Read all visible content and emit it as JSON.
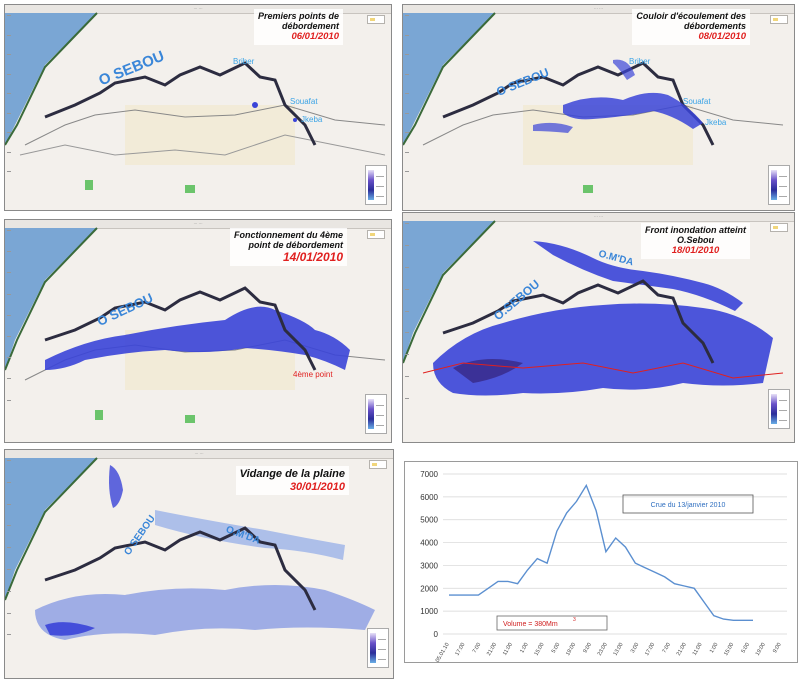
{
  "panels": [
    {
      "title_line1": "Premiers points de",
      "title_line2": "débordement",
      "date": "06/01/2010",
      "river_labels": [
        "O SEBOU"
      ],
      "places": [
        "Briber",
        "Souafat",
        "Jkeba"
      ],
      "colors": {
        "flood": "#3a44d8",
        "river": "#2c2c40",
        "sea": "#7aa6d4"
      }
    },
    {
      "title_line1": "Couloir d'écoulement des",
      "title_line2": "débordements",
      "date": "08/01/2010",
      "river_labels": [
        "O SEBOU"
      ],
      "places": [
        "Briber",
        "Souafat",
        "Jkeba"
      ]
    },
    {
      "title_line1": "Fonctionnement du 4ème",
      "title_line2": "point de débordement",
      "date": "14/01/2010",
      "river_labels": [
        "O SEBOU"
      ],
      "places": [
        "4ème point"
      ]
    },
    {
      "title_line1": "Front inondation atteint",
      "title_line2": "O.Sebou",
      "date": "18/01/2010",
      "river_labels": [
        "O.SEBOU",
        "O.M'DA"
      ],
      "places": []
    },
    {
      "title_line1": "Vidange de la plaine",
      "title_line2": "",
      "date": "30/01/2010",
      "river_labels": [
        "O SEBOU",
        "O.M'DA"
      ],
      "places": []
    }
  ],
  "chart_data": {
    "type": "line",
    "title": "",
    "annotation_box": "Crue du 13/janvier 2010",
    "volume_label": "Volume = 380Mm",
    "volume_superscript": "3",
    "ylim": [
      0,
      7000
    ],
    "yticks": [
      "0",
      "1000",
      "2000",
      "3000",
      "4000",
      "5000",
      "6000",
      "7000"
    ],
    "xtick_labels": [
      "05.01.10",
      "17:00",
      "7:00",
      "21:00",
      "11:00",
      "1:00",
      "15:00",
      "5:00",
      "19:00",
      "9:00",
      "23:00",
      "13:00",
      "3:00",
      "17:00",
      "7:00",
      "21:00",
      "11:00",
      "1:00",
      "15:00",
      "5:00",
      "19:00",
      "9:00"
    ],
    "series": [
      {
        "name": "",
        "color": "#5b8fd0",
        "values": [
          1700,
          1700,
          1700,
          1700,
          2000,
          2300,
          2300,
          2200,
          2800,
          3300,
          3100,
          4500,
          5300,
          5800,
          6500,
          5400,
          3600,
          4200,
          3800,
          3100,
          2900,
          2700,
          2500,
          2200,
          2100,
          2000,
          1400,
          800,
          650,
          600,
          600,
          600
        ]
      }
    ]
  }
}
